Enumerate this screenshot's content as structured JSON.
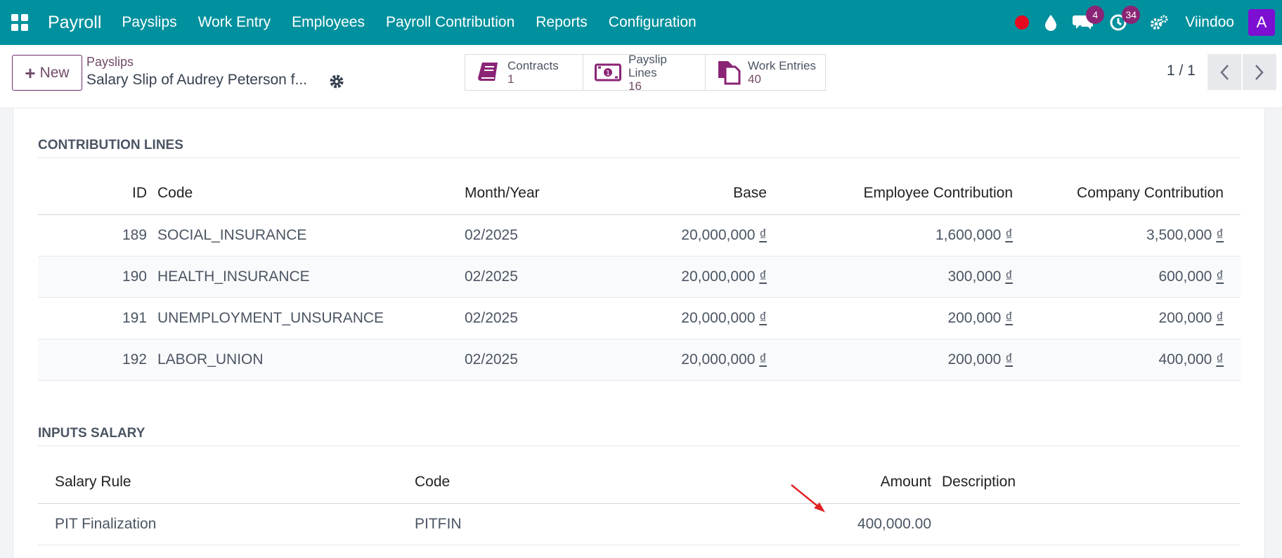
{
  "navbar": {
    "brand": "Payroll",
    "menu": [
      "Payslips",
      "Work Entry",
      "Employees",
      "Payroll Contribution",
      "Reports",
      "Configuration"
    ],
    "messages_badge": "4",
    "activities_badge": "34",
    "company": "Viindoo",
    "avatar_letter": "A",
    "colors": {
      "bar": "#01919e",
      "badge": "#8a2475",
      "avatar": "#7c0fd1",
      "record": "#e6091f"
    }
  },
  "control": {
    "new_label": "New",
    "breadcrumb": "Payslips",
    "record_title": "Salary Slip of Audrey Peterson f...",
    "smart_buttons": [
      {
        "label": "Contracts",
        "count": "1",
        "icon": "book-icon"
      },
      {
        "label": "Payslip Lines",
        "count": "16",
        "icon": "money-icon"
      },
      {
        "label": "Work Entries",
        "count": "40",
        "icon": "files-icon"
      }
    ],
    "pager": "1 / 1"
  },
  "contribution": {
    "title": "CONTRIBUTION LINES",
    "headers": [
      "ID",
      "Code",
      "Month/Year",
      "Base",
      "Employee Contribution",
      "Company Contribution"
    ],
    "currency": "₫",
    "rows": [
      {
        "id": "189",
        "code": "SOCIAL_INSURANCE",
        "month": "02/2025",
        "base": "20,000,000",
        "employee": "1,600,000",
        "company": "3,500,000"
      },
      {
        "id": "190",
        "code": "HEALTH_INSURANCE",
        "month": "02/2025",
        "base": "20,000,000",
        "employee": "300,000",
        "company": "600,000"
      },
      {
        "id": "191",
        "code": "UNEMPLOYMENT_UNSURANCE",
        "month": "02/2025",
        "base": "20,000,000",
        "employee": "200,000",
        "company": "200,000"
      },
      {
        "id": "192",
        "code": "LABOR_UNION",
        "month": "02/2025",
        "base": "20,000,000",
        "employee": "200,000",
        "company": "400,000"
      }
    ]
  },
  "inputs": {
    "title": "INPUTS SALARY",
    "headers": [
      "Salary Rule",
      "Code",
      "Amount",
      "Description"
    ],
    "rows": [
      {
        "rule": "PIT Finalization",
        "code": "PITFIN",
        "amount": "400,000.00",
        "description": ""
      }
    ]
  }
}
